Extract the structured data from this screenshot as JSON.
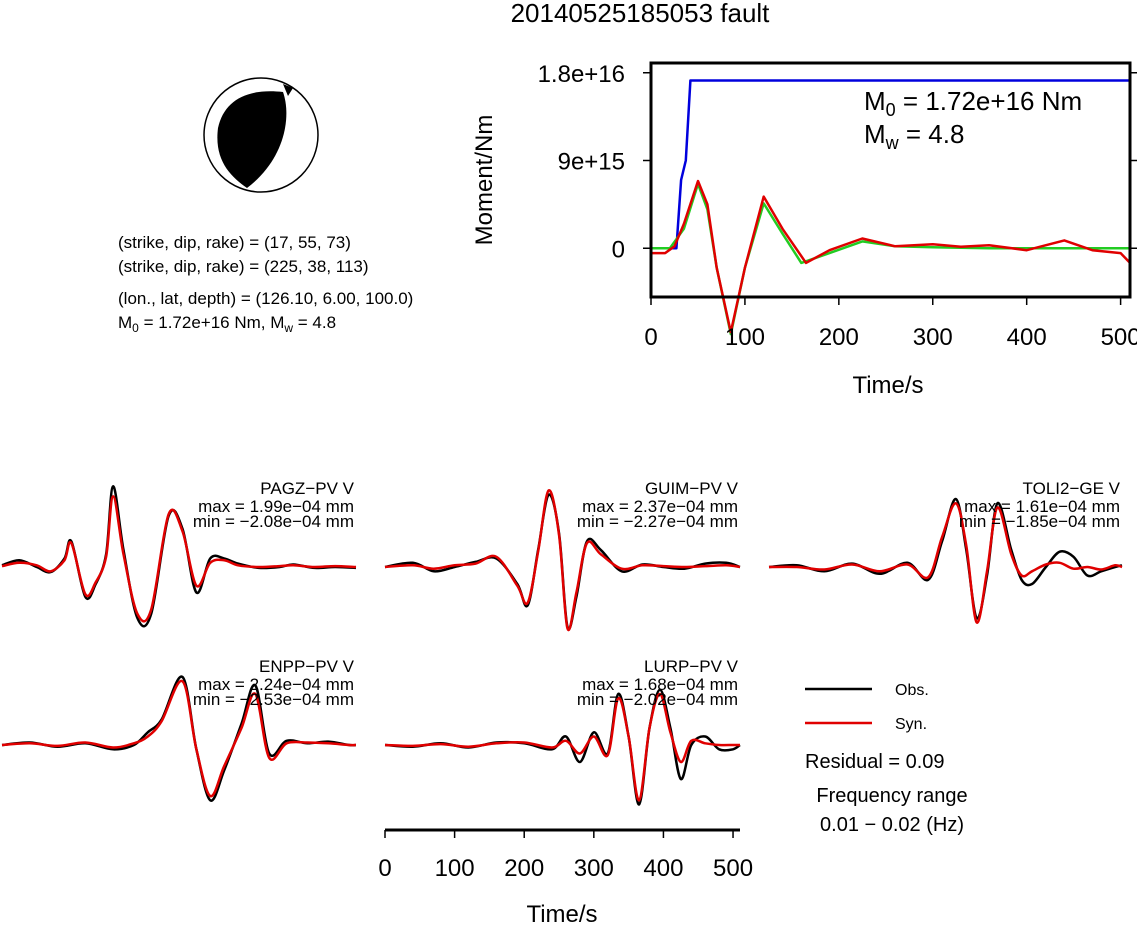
{
  "title": "20140525185053 fault",
  "info": {
    "line1": "(strike, dip, rake) = (17, 55, 73)",
    "line2": "(strike, dip, rake) = (225, 38, 113)",
    "line3": "(lon., lat, depth) = (126.10, 6.00, 100.0)",
    "m0_prefix": "M",
    "m0_sub": "0",
    "m0_rest": " = 1.72e+16 Nm, M",
    "mw_sub": "w",
    "mw_rest": " = 4.8"
  },
  "legend": {
    "obs": "Obs.",
    "syn": "Syn.",
    "residual": "Residual = 0.09",
    "freq_title": "Frequency range",
    "freq_value": "0.01 − 0.02 (Hz)"
  },
  "colors": {
    "obs": "#000000",
    "syn": "#e00000",
    "moment": "#0000dd",
    "stf": "#22cc22"
  },
  "chart_data": [
    {
      "type": "line",
      "id": "moment",
      "xlabel": "Time/s",
      "ylabel": "Moment/Nm",
      "xlim": [
        0,
        510
      ],
      "ylim": [
        -5000000000000000.0,
        1.9e+16
      ],
      "xticks": [
        0,
        100,
        200,
        300,
        400,
        500
      ],
      "yticks": [
        0,
        9000000000000000.0,
        1.8e+16
      ],
      "ytick_labels": [
        "0",
        "9e+15",
        "1.8e+16"
      ],
      "annotations": {
        "m0_main": "M",
        "m0_sub": "0",
        "m0_rest": " = 1.72e+16 Nm",
        "mw_main": "M",
        "mw_sub": "w",
        "mw_rest": " = 4.8"
      },
      "series": [
        {
          "color_key": "moment",
          "x": [
            0,
            27,
            32,
            37,
            42,
            48,
            510
          ],
          "y": [
            0,
            0,
            7000000000000000.0,
            9000000000000000.0,
            1.72e+16,
            1.72e+16,
            1.72e+16
          ]
        },
        {
          "color_key": "stf",
          "x": [
            0,
            20,
            35,
            50,
            60,
            70,
            85,
            100,
            120,
            140,
            160,
            190,
            225,
            260,
            300,
            360,
            420,
            480,
            510
          ],
          "y": [
            0,
            0,
            2000000000000000.0,
            6600000000000000.0,
            4000000000000000.0,
            -2000000000000000.0,
            -8800000000000000.0,
            -2000000000000000.0,
            4600000000000000.0,
            1500000000000000.0,
            -1500000000000000.0,
            -500000000000000.0,
            700000000000000.0,
            200000000000000.0,
            100000000000000.0,
            0,
            0,
            0,
            0
          ]
        },
        {
          "color_key": "syn",
          "x": [
            0,
            15,
            25,
            35,
            50,
            60,
            70,
            85,
            100,
            120,
            140,
            165,
            190,
            225,
            260,
            300,
            330,
            360,
            400,
            440,
            470,
            500,
            510
          ],
          "y": [
            -500000000000000.0,
            -500000000000000.0,
            200000000000000.0,
            2500000000000000.0,
            6900000000000000.0,
            4500000000000000.0,
            -2000000000000000.0,
            -8600000000000000.0,
            -2000000000000000.0,
            5300000000000000.0,
            2000000000000000.0,
            -1500000000000000.0,
            -200000000000000.0,
            1000000000000000.0,
            200000000000000.0,
            400000000000000.0,
            150000000000000.0,
            300000000000000.0,
            -200000000000000.0,
            800000000000000.0,
            -200000000000000.0,
            -500000000000000.0,
            -1500000000000000.0
          ]
        }
      ]
    },
    {
      "type": "line",
      "id": "waveforms",
      "xlabel": "Time/s",
      "xlim": [
        0,
        510
      ],
      "xticks": [
        0,
        100,
        200,
        300,
        400,
        500
      ],
      "stations": [
        {
          "name": "PAGZ−PV V",
          "max": "max = 1.99e−04 mm",
          "min": "min = −2.08e−04 mm",
          "series": [
            {
              "name": "Obs.",
              "color_key": "obs",
              "x": [
                0,
                25,
                50,
                70,
                90,
                100,
                120,
                135,
                150,
                160,
                175,
                195,
                215,
                240,
                260,
                280,
                300,
                320,
                340,
                370,
                400,
                420,
                450,
                480,
                510
              ],
              "y": [
                0.02,
                0.08,
                0.0,
                -0.06,
                0.1,
                0.3,
                -0.35,
                -0.2,
                0.15,
                0.95,
                0.2,
                -0.6,
                -0.55,
                0.6,
                0.45,
                -0.3,
                0.1,
                0.1,
                0.04,
                -0.01,
                0.0,
                0.03,
                -0.01,
                0.0,
                -0.01
              ]
            },
            {
              "name": "Syn.",
              "color_key": "syn",
              "x": [
                0,
                25,
                50,
                70,
                90,
                100,
                120,
                135,
                150,
                160,
                175,
                195,
                215,
                240,
                260,
                280,
                300,
                320,
                340,
                370,
                400,
                420,
                450,
                480,
                510
              ],
              "y": [
                0.01,
                0.05,
                0.02,
                -0.05,
                0.08,
                0.28,
                -0.32,
                -0.18,
                0.12,
                0.83,
                0.15,
                -0.55,
                -0.5,
                0.62,
                0.42,
                -0.22,
                0.05,
                0.08,
                0.02,
                0.0,
                0.01,
                0.02,
                0.0,
                0.01,
                0.0
              ]
            }
          ]
        },
        {
          "name": "GUIM−PV V",
          "max": "max = 2.37e−04 mm",
          "min": "min = −2.27e−04 mm",
          "series": [
            {
              "name": "Obs.",
              "color_key": "obs",
              "x": [
                0,
                40,
                70,
                100,
                130,
                160,
                190,
                205,
                220,
                235,
                250,
                262,
                275,
                290,
                310,
                340,
                370,
                400,
                430,
                460,
                490,
                510
              ],
              "y": [
                0.0,
                0.05,
                -0.05,
                0.0,
                0.06,
                0.1,
                -0.2,
                -0.45,
                0.2,
                0.85,
                0.4,
                -0.7,
                -0.35,
                0.3,
                0.2,
                -0.05,
                0.03,
                0.0,
                -0.02,
                0.04,
                0.05,
                0.0
              ]
            },
            {
              "name": "Syn.",
              "color_key": "syn",
              "x": [
                0,
                40,
                70,
                100,
                130,
                160,
                190,
                205,
                220,
                235,
                250,
                262,
                275,
                290,
                310,
                340,
                370,
                400,
                430,
                460,
                490,
                510
              ],
              "y": [
                0.0,
                0.02,
                -0.02,
                0.02,
                0.04,
                0.12,
                -0.22,
                -0.42,
                0.18,
                0.9,
                0.38,
                -0.72,
                -0.3,
                0.28,
                0.15,
                -0.02,
                0.02,
                0.01,
                0.0,
                0.01,
                0.02,
                0.0
              ]
            }
          ]
        },
        {
          "name": "TOLI2−GE V",
          "max": "max = 1.61e−04 mm",
          "min": "min = −1.85e−04 mm",
          "series": [
            {
              "name": "Obs.",
              "color_key": "obs",
              "x": [
                0,
                40,
                80,
                120,
                160,
                200,
                230,
                250,
                270,
                285,
                300,
                315,
                330,
                350,
                365,
                380,
                400,
                420,
                440,
                460,
                480,
                500,
                510
              ],
              "y": [
                0.0,
                0.02,
                -0.05,
                0.04,
                -0.08,
                0.05,
                -0.15,
                0.3,
                0.8,
                0.2,
                -0.6,
                -0.1,
                0.75,
                0.2,
                -0.15,
                -0.2,
                0.0,
                0.18,
                0.12,
                -0.1,
                -0.05,
                0.0,
                0.02
              ]
            },
            {
              "name": "Syn.",
              "color_key": "syn",
              "x": [
                0,
                40,
                80,
                120,
                160,
                200,
                230,
                250,
                270,
                285,
                300,
                315,
                330,
                350,
                365,
                380,
                400,
                420,
                440,
                460,
                480,
                500,
                510
              ],
              "y": [
                0.0,
                0.0,
                -0.03,
                0.03,
                -0.05,
                0.03,
                -0.12,
                0.35,
                0.75,
                0.25,
                -0.65,
                -0.05,
                0.7,
                0.15,
                -0.1,
                -0.05,
                0.03,
                0.05,
                -0.02,
                0.0,
                -0.03,
                0.02,
                0.0
              ]
            }
          ]
        },
        {
          "name": "ENPP−PV V",
          "max": "max = 2.24e−04 mm",
          "min": "min = −2.53e−04 mm",
          "series": [
            {
              "name": "Obs.",
              "color_key": "obs",
              "x": [
                0,
                40,
                80,
                120,
                160,
                190,
                210,
                230,
                260,
                280,
                300,
                320,
                345,
                365,
                385,
                410,
                440,
                470,
                500,
                510
              ],
              "y": [
                0.0,
                0.03,
                -0.02,
                0.02,
                -0.05,
                0.0,
                0.15,
                0.3,
                0.8,
                -0.05,
                -0.65,
                -0.3,
                0.25,
                0.7,
                -0.1,
                0.05,
                0.02,
                0.04,
                0.0,
                0.0
              ]
            },
            {
              "name": "Syn.",
              "color_key": "syn",
              "x": [
                0,
                40,
                80,
                120,
                160,
                190,
                210,
                230,
                260,
                280,
                300,
                320,
                345,
                365,
                385,
                410,
                440,
                470,
                500,
                510
              ],
              "y": [
                0.0,
                0.02,
                -0.01,
                0.03,
                -0.03,
                0.02,
                0.1,
                0.28,
                0.75,
                -0.05,
                -0.6,
                -0.25,
                0.2,
                0.6,
                -0.15,
                0.02,
                0.03,
                0.02,
                0.0,
                0.0
              ]
            }
          ]
        },
        {
          "name": "LURP−PV V",
          "max": "max = 1.68e−04 mm",
          "min": "min = −2.02e−04 mm",
          "series": [
            {
              "name": "Obs.",
              "color_key": "obs",
              "x": [
                0,
                40,
                80,
                120,
                160,
                200,
                240,
                260,
                280,
                300,
                320,
                335,
                350,
                365,
                380,
                395,
                410,
                425,
                440,
                460,
                480,
                500,
                510
              ],
              "y": [
                0.0,
                -0.02,
                0.02,
                -0.03,
                0.03,
                0.02,
                -0.05,
                0.1,
                -0.2,
                0.15,
                -0.1,
                0.6,
                0.1,
                -0.7,
                0.2,
                0.65,
                0.2,
                -0.4,
                0.0,
                0.1,
                -0.05,
                -0.05,
                0.0
              ]
            },
            {
              "name": "Syn.",
              "color_key": "syn",
              "x": [
                0,
                40,
                80,
                120,
                160,
                200,
                240,
                260,
                280,
                300,
                320,
                335,
                350,
                365,
                380,
                395,
                410,
                425,
                440,
                460,
                480,
                500,
                510
              ],
              "y": [
                0.0,
                -0.01,
                0.01,
                -0.02,
                0.02,
                0.03,
                -0.03,
                0.05,
                -0.1,
                0.1,
                -0.12,
                0.55,
                0.1,
                -0.65,
                0.2,
                0.6,
                0.15,
                -0.2,
                0.05,
                0.02,
                0.0,
                0.0,
                0.0
              ]
            }
          ]
        }
      ]
    }
  ]
}
